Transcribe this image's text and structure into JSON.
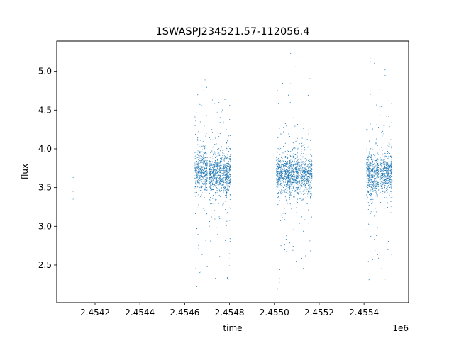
{
  "chart_data": {
    "type": "scatter",
    "title": "1SWASPJ234521.57-112056.4",
    "xlabel": "time",
    "ylabel": "flux",
    "x_offset_label": "1e6",
    "xlim": [
      2454029,
      2455599
    ],
    "ylim": [
      2.015,
      5.39
    ],
    "x_ticks": [
      2454200,
      2454400,
      2454600,
      2454800,
      2455000,
      2455200,
      2455400
    ],
    "x_tick_labels": [
      "2.4542",
      "2.4544",
      "2.4546",
      "2.4548",
      "2.4550",
      "2.4552",
      "2.4554"
    ],
    "y_ticks": [
      2.5,
      3.0,
      3.5,
      4.0,
      4.5,
      5.0
    ],
    "y_tick_labels": [
      "2.5",
      "3.0",
      "3.5",
      "4.0",
      "4.5",
      "5.0"
    ],
    "grid": false,
    "marker_color": "#1f77b4",
    "isolated_points": [
      {
        "x": 2454102,
        "y": 3.63
      },
      {
        "x": 2454102,
        "y": 3.61
      },
      {
        "x": 2454102,
        "y": 3.45
      },
      {
        "x": 2454102,
        "y": 3.35
      }
    ],
    "observing_seasons": [
      {
        "x_range": [
          2454646,
          2454700
        ],
        "flux_median": 3.7,
        "flux_range": [
          2.2,
          4.95
        ]
      },
      {
        "x_range": [
          2454708,
          2454804
        ],
        "flux_median": 3.68,
        "flux_range": [
          2.2,
          4.8
        ]
      },
      {
        "x_range": [
          2455010,
          2455115
        ],
        "flux_median": 3.68,
        "flux_range": [
          2.18,
          5.25
        ]
      },
      {
        "x_range": [
          2455118,
          2455168
        ],
        "flux_median": 3.66,
        "flux_range": [
          2.22,
          5.2
        ]
      },
      {
        "x_range": [
          2455412,
          2455466
        ],
        "flux_median": 3.68,
        "flux_range": [
          2.22,
          5.2
        ]
      },
      {
        "x_range": [
          2455470,
          2455526
        ],
        "flux_median": 3.7,
        "flux_range": [
          2.2,
          5.2
        ]
      }
    ]
  }
}
